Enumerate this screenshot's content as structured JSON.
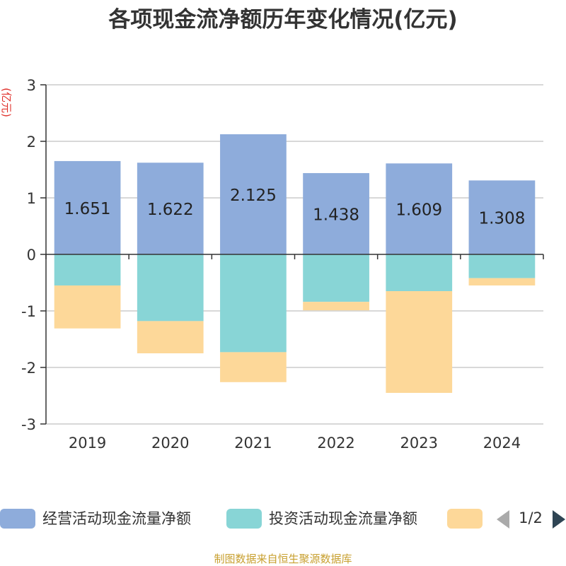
{
  "chart_data": {
    "type": "bar",
    "stacked": true,
    "title": "各项现金流净额历年变化情况(亿元)",
    "ylabel": "(亿元)",
    "xlabel": "",
    "categories": [
      "2019",
      "2020",
      "2021",
      "2022",
      "2023",
      "2024"
    ],
    "ylim": [
      -3,
      3
    ],
    "yticks": [
      3,
      2,
      1,
      0,
      -1,
      -2,
      -3
    ],
    "grid": true,
    "legend_position": "bottom",
    "series": [
      {
        "name": "经营活动现金流量净额",
        "color": "#8eacdb",
        "values": [
          1.651,
          1.622,
          2.125,
          1.438,
          1.609,
          1.308
        ],
        "show_labels": true
      },
      {
        "name": "投资活动现金流量净额",
        "color": "#88d5d6",
        "values": [
          -0.55,
          -1.18,
          -1.73,
          -0.84,
          -0.65,
          -0.42
        ],
        "show_labels": false
      },
      {
        "name": "",
        "color": "#fdd899",
        "values": [
          -0.76,
          -0.57,
          -0.53,
          -0.15,
          -1.8,
          -0.13
        ],
        "show_labels": false
      }
    ]
  },
  "legend": {
    "pager": "1/2"
  },
  "source_note": "制图数据来自恒生聚源数据库"
}
